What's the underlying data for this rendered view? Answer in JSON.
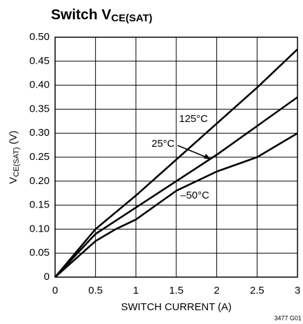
{
  "chart_data": {
    "type": "line",
    "title": {
      "text": "Switch V",
      "subscript": "CE(SAT)"
    },
    "xlabel": "SWITCH CURRENT (A)",
    "ylabel": {
      "text": "V",
      "subscript": "CE(SAT)",
      "suffix": " (V)"
    },
    "xlim": [
      0,
      3
    ],
    "xticks": [
      0,
      0.5,
      1,
      1.5,
      2,
      2.5,
      3
    ],
    "ylim": [
      0,
      0.5
    ],
    "yticks": [
      0,
      0.05,
      {
        "value": 0.1,
        "label": "0.10"
      },
      0.15,
      {
        "value": 0.2,
        "label": "0.20"
      },
      0.25,
      {
        "value": 0.3,
        "label": "0.30"
      },
      0.35,
      {
        "value": 0.4,
        "label": "0.40"
      },
      0.45,
      {
        "value": 0.5,
        "label": "0.50"
      }
    ],
    "grid": true,
    "series": [
      {
        "name": "125°C",
        "color": "#000000",
        "x": [
          0,
          0.5,
          1,
          1.5,
          2,
          2.5,
          3
        ],
        "values": [
          0,
          0.1,
          0.17,
          0.245,
          0.32,
          0.395,
          0.475
        ]
      },
      {
        "name": "25°C",
        "color": "#000000",
        "x": [
          0,
          0.5,
          1,
          1.5,
          2,
          2.5,
          3
        ],
        "values": [
          0,
          0.09,
          0.145,
          0.2,
          0.255,
          0.315,
          0.375
        ]
      },
      {
        "name": "–50°C",
        "color": "#000000",
        "x": [
          0,
          0.5,
          0.75,
          1,
          1.5,
          2,
          2.5,
          3
        ],
        "values": [
          0,
          0.075,
          0.1,
          0.12,
          0.18,
          0.22,
          0.25,
          0.3
        ]
      }
    ],
    "footnote": "3477 G01"
  }
}
